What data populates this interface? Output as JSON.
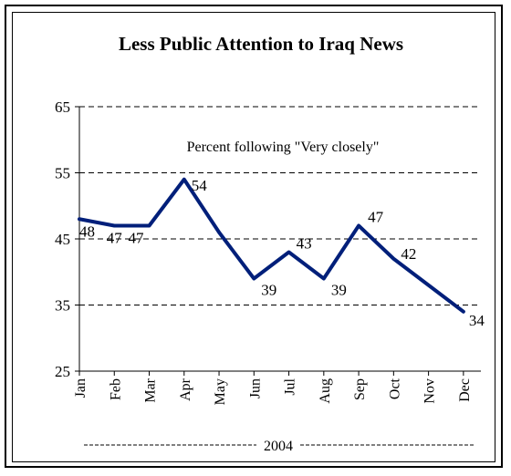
{
  "chart_data": {
    "type": "line",
    "title": "Less Public Attention to Iraq News",
    "subtitle": "Percent following \"Very closely\"",
    "categories": [
      "Jan",
      "Feb",
      "Mar",
      "Apr",
      "May",
      "Jun",
      "Jul",
      "Aug",
      "Sep",
      "Oct",
      "Nov",
      "Dec"
    ],
    "series": [
      {
        "name": "",
        "values": [
          48,
          47,
          47,
          54,
          46,
          39,
          43,
          39,
          47,
          42,
          38,
          34
        ]
      }
    ],
    "data_labels": [
      {
        "index": 0,
        "text": "48"
      },
      {
        "index": 1,
        "text": "47"
      },
      {
        "index": 2,
        "text": "47"
      },
      {
        "index": 3,
        "text": "54"
      },
      {
        "index": 5,
        "text": "39"
      },
      {
        "index": 6,
        "text": "43"
      },
      {
        "index": 7,
        "text": "39"
      },
      {
        "index": 8,
        "text": "47"
      },
      {
        "index": 9,
        "text": "42"
      },
      {
        "index": 11,
        "text": "34"
      }
    ],
    "yticks": [
      25,
      35,
      45,
      55,
      65
    ],
    "ylim": [
      25,
      65
    ],
    "xlabel": "2004",
    "ylabel": "",
    "grid": "horizontal-dashed",
    "line_color": "#001f7a"
  }
}
